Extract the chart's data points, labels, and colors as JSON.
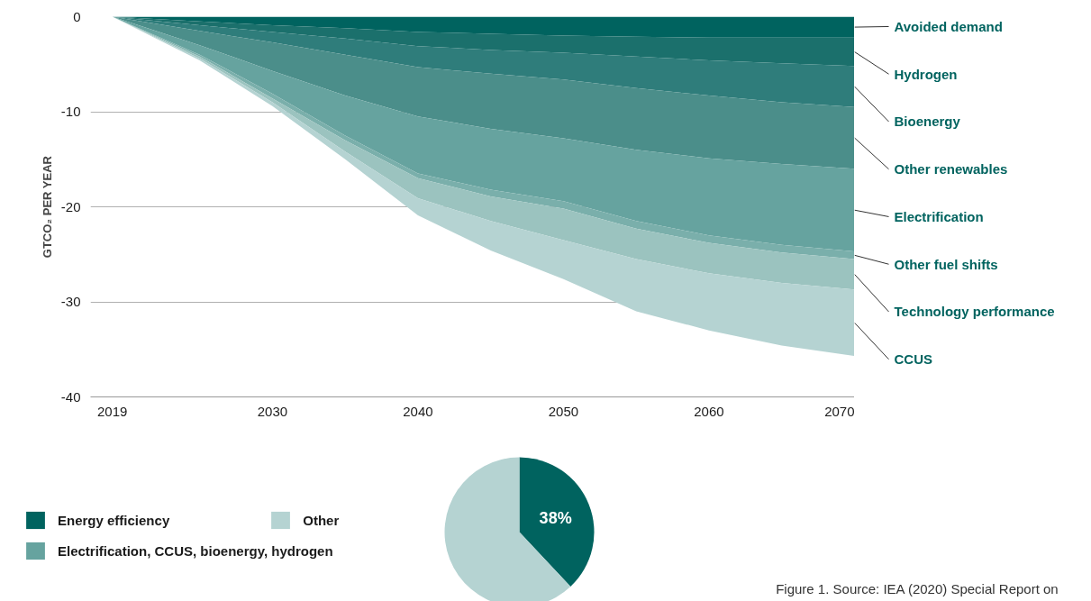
{
  "chart_data": [
    {
      "type": "area",
      "stacked": true,
      "ylabel": "GTCO₂ PER YEAR",
      "x": [
        2019,
        2025,
        2030,
        2035,
        2040,
        2045,
        2050,
        2055,
        2060,
        2065,
        2070
      ],
      "xlim": [
        2017.5,
        2070
      ],
      "xticks": [
        2019,
        2030,
        2040,
        2050,
        2060,
        2070
      ],
      "ylim": [
        -40,
        0
      ],
      "yticks": [
        0,
        -10,
        -20,
        -30,
        -40
      ],
      "grid": "y",
      "legend": false,
      "series": [
        {
          "name": "Avoided demand",
          "color": "#00635f",
          "values": [
            0,
            -0.5,
            -0.9,
            -1.2,
            -1.6,
            -1.8,
            -2.0,
            -2.1,
            -2.2,
            -2.2,
            -2.2
          ]
        },
        {
          "name": "Hydrogen",
          "color": "#1b706c",
          "values": [
            0,
            -0.4,
            -0.7,
            -1.1,
            -1.5,
            -1.7,
            -1.8,
            -2.1,
            -2.4,
            -2.7,
            -3.0
          ]
        },
        {
          "name": "Bioenergy",
          "color": "#2f7d7b",
          "values": [
            0,
            -0.6,
            -1.1,
            -1.7,
            -2.2,
            -2.5,
            -2.8,
            -3.3,
            -3.7,
            -4.1,
            -4.3
          ]
        },
        {
          "name": "Other renewables",
          "color": "#4b8e8a",
          "values": [
            0,
            -1.5,
            -3.0,
            -4.3,
            -5.2,
            -5.8,
            -6.2,
            -6.5,
            -6.6,
            -6.5,
            -6.5
          ]
        },
        {
          "name": "Electrification",
          "color": "#66a39f",
          "values": [
            0,
            -1.0,
            -2.4,
            -4.2,
            -6.0,
            -6.4,
            -6.6,
            -7.5,
            -8.1,
            -8.5,
            -8.7
          ]
        },
        {
          "name": "Other fuel shifts",
          "color": "#7aafab",
          "values": [
            0,
            -0.2,
            -0.5,
            -0.5,
            -0.5,
            -0.7,
            -0.8,
            -0.8,
            -0.8,
            -0.8,
            -0.8
          ]
        },
        {
          "name": "Technology performance",
          "color": "#9bc3bf",
          "values": [
            0,
            -0.2,
            -0.4,
            -1.2,
            -2.1,
            -2.6,
            -3.3,
            -3.2,
            -3.2,
            -3.2,
            -3.2
          ]
        },
        {
          "name": "CCUS",
          "color": "#b5d3d2",
          "values": [
            0,
            -0.2,
            -0.4,
            -0.8,
            -1.8,
            -3.1,
            -4.1,
            -5.5,
            -6.0,
            -6.6,
            -7.0
          ]
        }
      ]
    },
    {
      "type": "pie",
      "categories": [
        "Energy efficiency",
        "Electrification, CCUS, bioenergy, hydrogen",
        "Other"
      ],
      "values": [
        38,
        0,
        62
      ],
      "colors": [
        "#00635f",
        "#66a39f",
        "#b5d3d2"
      ],
      "value_labels": [
        "38%",
        null,
        null
      ],
      "legend": "left",
      "annotations": [
        "Figure 1. Source: IEA (2020) Special Report on"
      ]
    }
  ]
}
